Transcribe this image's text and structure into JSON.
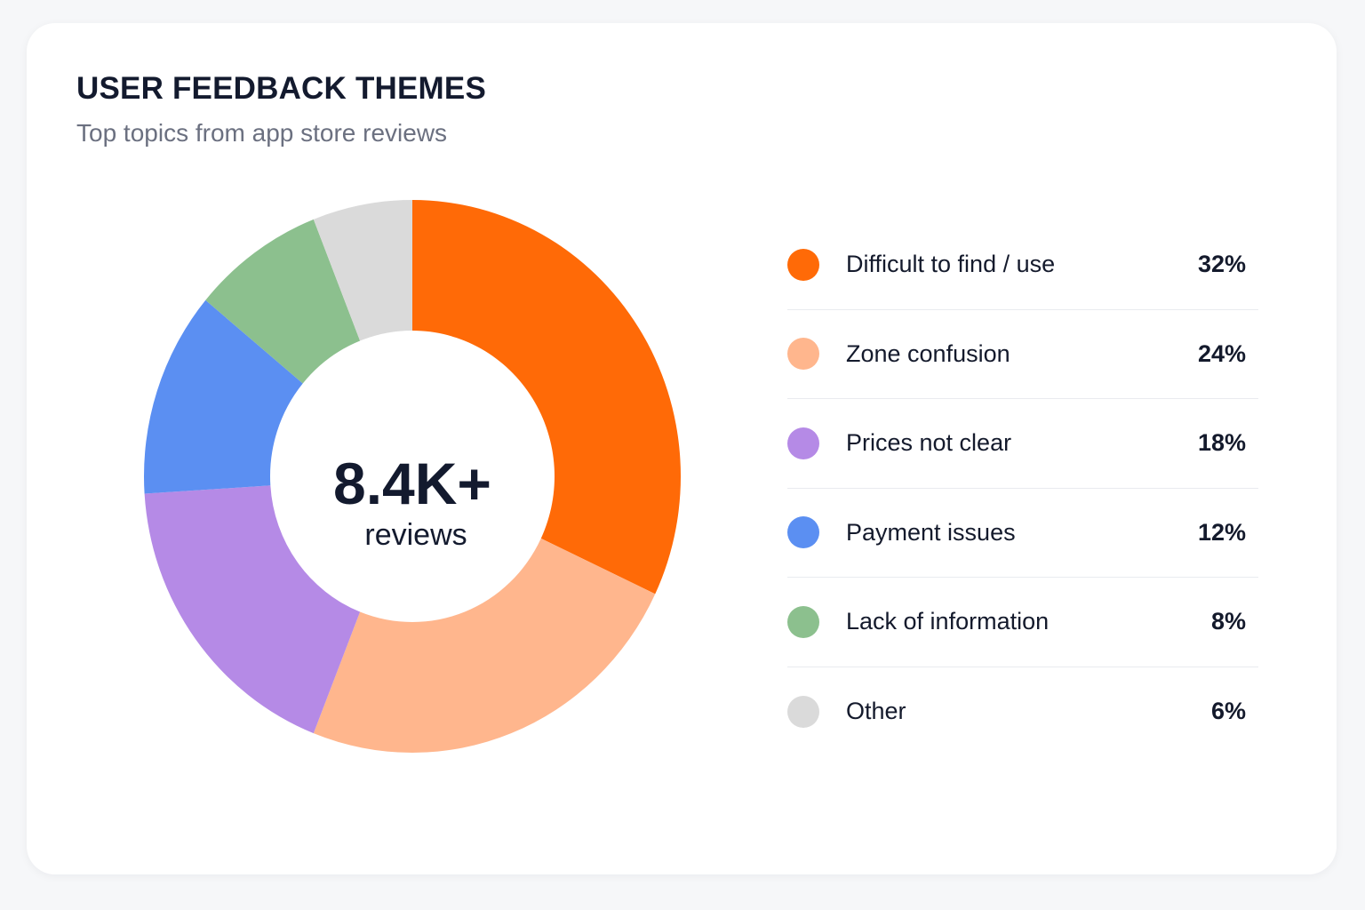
{
  "header": {
    "title": "USER FEEDBACK THEMES",
    "subtitle": "Top topics from app store reviews"
  },
  "center": {
    "value": "8.4K+",
    "label": "reviews"
  },
  "legend": [
    {
      "label": "Difficult to find / use",
      "value_text": "32%"
    },
    {
      "label": "Zone confusion",
      "value_text": "24%"
    },
    {
      "label": "Prices not clear",
      "value_text": "18%"
    },
    {
      "label": "Payment issues",
      "value_text": "12%"
    },
    {
      "label": "Lack of information",
      "value_text": "8%"
    },
    {
      "label": "Other",
      "value_text": "6%"
    }
  ],
  "chart_data": {
    "type": "pie",
    "title": "USER FEEDBACK THEMES",
    "subtitle": "Top topics from app store reviews",
    "donut": true,
    "center_text": "8.4K+ reviews",
    "legend_position": "right",
    "categories": [
      "Difficult to find / use",
      "Zone confusion",
      "Prices not clear",
      "Payment issues",
      "Lack of information",
      "Other"
    ],
    "values": [
      32,
      24,
      18,
      12,
      8,
      6
    ],
    "unit": "%",
    "colors": [
      "#ff6a07",
      "#ffb68d",
      "#b58ae6",
      "#5b8ff2",
      "#8cc08e",
      "#dadada"
    ]
  }
}
